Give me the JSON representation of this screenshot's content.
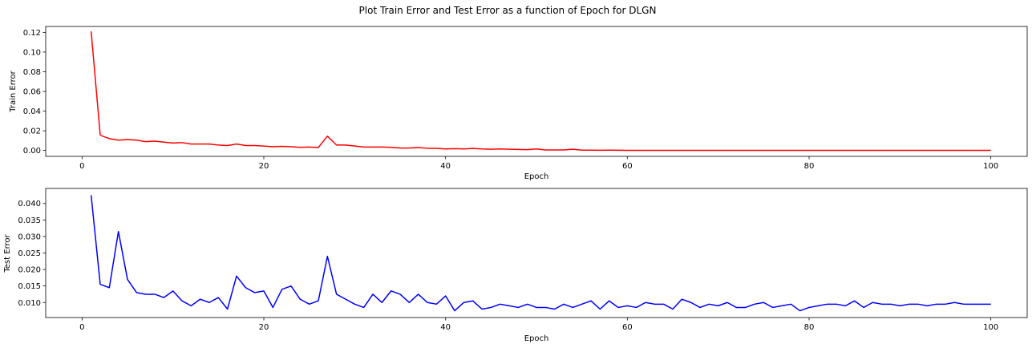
{
  "title": "Plot Train Error and Test Error as a function of Epoch for DLGN",
  "chart_data": [
    {
      "type": "line",
      "xlabel": "Epoch",
      "ylabel": "Train Error",
      "xlim": [
        -4,
        104
      ],
      "ylim": [
        -0.006,
        0.126
      ],
      "xticks": [
        0,
        20,
        40,
        60,
        80,
        100
      ],
      "yticks": [
        0.0,
        0.02,
        0.04,
        0.06,
        0.08,
        0.1,
        0.12
      ],
      "ytick_labels": [
        "0.00",
        "0.02",
        "0.04",
        "0.06",
        "0.08",
        "0.10",
        "0.12"
      ],
      "grid": false,
      "series": [
        {
          "color": "#ff0000",
          "x": [
            1,
            2,
            3,
            4,
            5,
            6,
            7,
            8,
            9,
            10,
            11,
            12,
            13,
            14,
            15,
            16,
            17,
            18,
            19,
            20,
            21,
            22,
            23,
            24,
            25,
            26,
            27,
            28,
            29,
            30,
            31,
            32,
            33,
            34,
            35,
            36,
            37,
            38,
            39,
            40,
            41,
            42,
            43,
            44,
            45,
            46,
            47,
            48,
            49,
            50,
            51,
            52,
            53,
            54,
            55,
            56,
            57,
            58,
            59,
            60,
            61,
            62,
            63,
            64,
            65,
            66,
            67,
            68,
            69,
            70,
            71,
            72,
            73,
            74,
            75,
            76,
            77,
            78,
            79,
            80,
            81,
            82,
            83,
            84,
            85,
            86,
            87,
            88,
            89,
            90,
            91,
            92,
            93,
            94,
            95,
            96,
            97,
            98,
            99,
            100
          ],
          "values": [
            0.121,
            0.0155,
            0.012,
            0.0105,
            0.011,
            0.0105,
            0.009,
            0.0095,
            0.0085,
            0.0075,
            0.008,
            0.0065,
            0.0065,
            0.0065,
            0.0055,
            0.005,
            0.0065,
            0.005,
            0.005,
            0.0045,
            0.0038,
            0.0042,
            0.0038,
            0.0032,
            0.0035,
            0.003,
            0.0145,
            0.0055,
            0.0055,
            0.0045,
            0.0035,
            0.0035,
            0.0035,
            0.0032,
            0.0025,
            0.0025,
            0.003,
            0.0022,
            0.0022,
            0.0015,
            0.0018,
            0.0015,
            0.002,
            0.0015,
            0.0012,
            0.0015,
            0.0012,
            0.001,
            0.0008,
            0.0015,
            0.0005,
            0.0005,
            0.0005,
            0.0012,
            0.0003,
            0.0003,
            0.0002,
            0.0003,
            0.0002,
            0.0001,
            0.0001,
            0.0001,
            0.0001,
            0.0001,
            0.0001,
            0.0001,
            0.0001,
            0.0001,
            0.0001,
            0.0001,
            0.0001,
            0.0001,
            0.0001,
            0.0001,
            0.0001,
            0.0001,
            0.0001,
            0.0001,
            0.0001,
            0.0001,
            0.0001,
            0.0001,
            0.0001,
            0.0001,
            0.0001,
            0.0001,
            0.0001,
            0.0001,
            0.0001,
            0.0001,
            0.0001,
            0.0001,
            0.0001,
            0.0001,
            0.0001,
            0.0001,
            0.0001,
            0.0001,
            0.0001,
            0.0001
          ]
        }
      ]
    },
    {
      "type": "line",
      "xlabel": "Epoch",
      "ylabel": "Test Error",
      "xlim": [
        -4,
        104
      ],
      "ylim": [
        0.00545,
        0.04455
      ],
      "xticks": [
        0,
        20,
        40,
        60,
        80,
        100
      ],
      "yticks": [
        0.01,
        0.015,
        0.02,
        0.025,
        0.03,
        0.035,
        0.04
      ],
      "ytick_labels": [
        "0.010",
        "0.015",
        "0.020",
        "0.025",
        "0.030",
        "0.035",
        "0.040"
      ],
      "grid": false,
      "series": [
        {
          "color": "#0000ff",
          "x": [
            1,
            2,
            3,
            4,
            5,
            6,
            7,
            8,
            9,
            10,
            11,
            12,
            13,
            14,
            15,
            16,
            17,
            18,
            19,
            20,
            21,
            22,
            23,
            24,
            25,
            26,
            27,
            28,
            29,
            30,
            31,
            32,
            33,
            34,
            35,
            36,
            37,
            38,
            39,
            40,
            41,
            42,
            43,
            44,
            45,
            46,
            47,
            48,
            49,
            50,
            51,
            52,
            53,
            54,
            55,
            56,
            57,
            58,
            59,
            60,
            61,
            62,
            63,
            64,
            65,
            66,
            67,
            68,
            69,
            70,
            71,
            72,
            73,
            74,
            75,
            76,
            77,
            78,
            79,
            80,
            81,
            82,
            83,
            84,
            85,
            86,
            87,
            88,
            89,
            90,
            91,
            92,
            93,
            94,
            95,
            96,
            97,
            98,
            99,
            100
          ],
          "values": [
            0.0425,
            0.0155,
            0.0145,
            0.0315,
            0.017,
            0.013,
            0.0125,
            0.0125,
            0.0115,
            0.0135,
            0.0105,
            0.009,
            0.011,
            0.01,
            0.0115,
            0.008,
            0.018,
            0.0145,
            0.013,
            0.0135,
            0.0085,
            0.014,
            0.015,
            0.011,
            0.0095,
            0.0105,
            0.024,
            0.0125,
            0.011,
            0.0095,
            0.0085,
            0.0125,
            0.01,
            0.0135,
            0.0125,
            0.01,
            0.0125,
            0.01,
            0.0095,
            0.012,
            0.0075,
            0.01,
            0.0105,
            0.008,
            0.0085,
            0.0095,
            0.009,
            0.0085,
            0.0095,
            0.0085,
            0.0085,
            0.008,
            0.0095,
            0.0085,
            0.0095,
            0.0105,
            0.008,
            0.0105,
            0.0085,
            0.009,
            0.0085,
            0.01,
            0.0095,
            0.0095,
            0.008,
            0.011,
            0.01,
            0.0085,
            0.0095,
            0.009,
            0.01,
            0.0085,
            0.0085,
            0.0095,
            0.01,
            0.0085,
            0.009,
            0.0095,
            0.0075,
            0.0085,
            0.009,
            0.0095,
            0.0095,
            0.009,
            0.0105,
            0.0085,
            0.01,
            0.0095,
            0.0095,
            0.009,
            0.0095,
            0.0095,
            0.009,
            0.0095,
            0.0095,
            0.01,
            0.0095,
            0.0095,
            0.0095,
            0.0095
          ]
        }
      ]
    }
  ]
}
